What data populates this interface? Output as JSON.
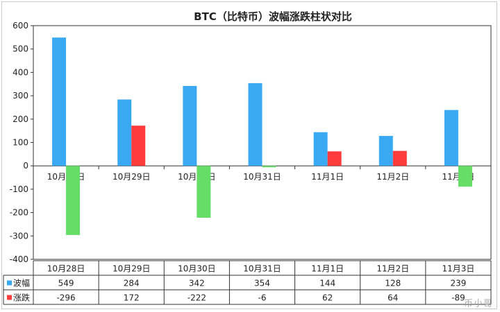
{
  "chart_data": {
    "type": "bar",
    "title": "BTC（比特币）波幅涨跌柱状对比",
    "categories": [
      "10月28日",
      "10月29日",
      "10月30日",
      "10月31日",
      "11月1日",
      "11月2日",
      "11月3日"
    ],
    "series": [
      {
        "name": "波幅",
        "color": "#3aa9f4",
        "values": [
          549,
          284,
          342,
          354,
          144,
          128,
          239
        ]
      },
      {
        "name": "涨跌",
        "color": "#ff3b3b",
        "negative_color": "#66dd66",
        "values": [
          -296,
          172,
          -222,
          -6,
          62,
          64,
          -89
        ]
      }
    ],
    "ylim": [
      -400,
      600
    ],
    "yticks": [
      600,
      500,
      400,
      300,
      200,
      100,
      0,
      -100,
      -200,
      -300,
      -400
    ],
    "grid": false,
    "legend": "data-table",
    "table": {
      "rows": [
        {
          "label": "波幅",
          "values": [
            "549",
            "284",
            "342",
            "354",
            "144",
            "128",
            "239"
          ]
        },
        {
          "label": "涨跌",
          "values": [
            "-296",
            "172",
            "-222",
            "-6",
            "62",
            "64",
            "-89"
          ]
        }
      ]
    }
  },
  "watermark": "币小哥"
}
